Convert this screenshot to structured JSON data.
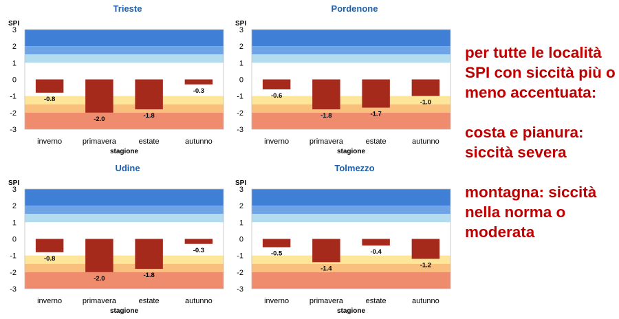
{
  "chart_data": [
    {
      "type": "bar",
      "title": "Trieste",
      "ylabel": "SPI",
      "xlabel": "stagione",
      "ylim": [
        -3,
        3
      ],
      "yticks": [
        "3",
        "2",
        "1",
        "0",
        "-1",
        "-2",
        "-3"
      ],
      "categories": [
        "inverno",
        "primavera",
        "estate",
        "autunno"
      ],
      "values": [
        -0.8,
        -2.0,
        -1.8,
        -0.3
      ],
      "value_labels": [
        "-0.8",
        "-2.0",
        "-1.8",
        "-0.3"
      ]
    },
    {
      "type": "bar",
      "title": "Pordenone",
      "ylabel": "SPI",
      "xlabel": "stagione",
      "ylim": [
        -3,
        3
      ],
      "yticks": [
        "3",
        "2",
        "1",
        "0",
        "-1",
        "-2",
        "-3"
      ],
      "categories": [
        "inverno",
        "primavera",
        "estate",
        "autunno"
      ],
      "values": [
        -0.6,
        -1.8,
        -1.7,
        -1.0
      ],
      "value_labels": [
        "-0.6",
        "-1.8",
        "-1.7",
        "-1.0"
      ]
    },
    {
      "type": "bar",
      "title": "Udine",
      "ylabel": "SPI",
      "xlabel": "stagione",
      "ylim": [
        -3,
        3
      ],
      "yticks": [
        "3",
        "2",
        "1",
        "0",
        "-1",
        "-2",
        "-3"
      ],
      "categories": [
        "inverno",
        "primavera",
        "estate",
        "autunno"
      ],
      "values": [
        -0.8,
        -2.0,
        -1.8,
        -0.3
      ],
      "value_labels": [
        "-0.8",
        "-2.0",
        "-1.8",
        "-0.3"
      ]
    },
    {
      "type": "bar",
      "title": "Tolmezzo",
      "ylabel": "SPI",
      "xlabel": "stagione",
      "ylim": [
        -3,
        3
      ],
      "yticks": [
        "3",
        "2",
        "1",
        "0",
        "-1",
        "-2",
        "-3"
      ],
      "categories": [
        "inverno",
        "primavera",
        "estate",
        "autunno"
      ],
      "values": [
        -0.5,
        -1.4,
        -0.4,
        -1.2
      ],
      "value_labels": [
        "-0.5",
        "-1.4",
        "-0.4",
        "-1.2"
      ]
    }
  ],
  "colors": {
    "title": "#1f5fa8",
    "bar": "#a52a1c",
    "side_text": "#c00000",
    "bands": [
      {
        "from": 2,
        "to": 3,
        "color": "#3f7fd6"
      },
      {
        "from": 1.5,
        "to": 2,
        "color": "#6ea3e6"
      },
      {
        "from": 1,
        "to": 1.5,
        "color": "#b3dcef"
      },
      {
        "from": -1,
        "to": 1,
        "color": "#ffffff"
      },
      {
        "from": -1.5,
        "to": -1,
        "color": "#fde59a"
      },
      {
        "from": -2,
        "to": -1.5,
        "color": "#f9c07d"
      },
      {
        "from": -3,
        "to": -2,
        "color": "#ef8c6e"
      }
    ]
  },
  "side_text": {
    "line1": "per tutte le località",
    "line2": "SPI con siccità più o",
    "line3": "meno accentuata:",
    "line4": "costa e pianura:",
    "line5": "siccità severa",
    "line6": "montagna: siccità",
    "line7": "nella norma o",
    "line8": "moderata"
  }
}
